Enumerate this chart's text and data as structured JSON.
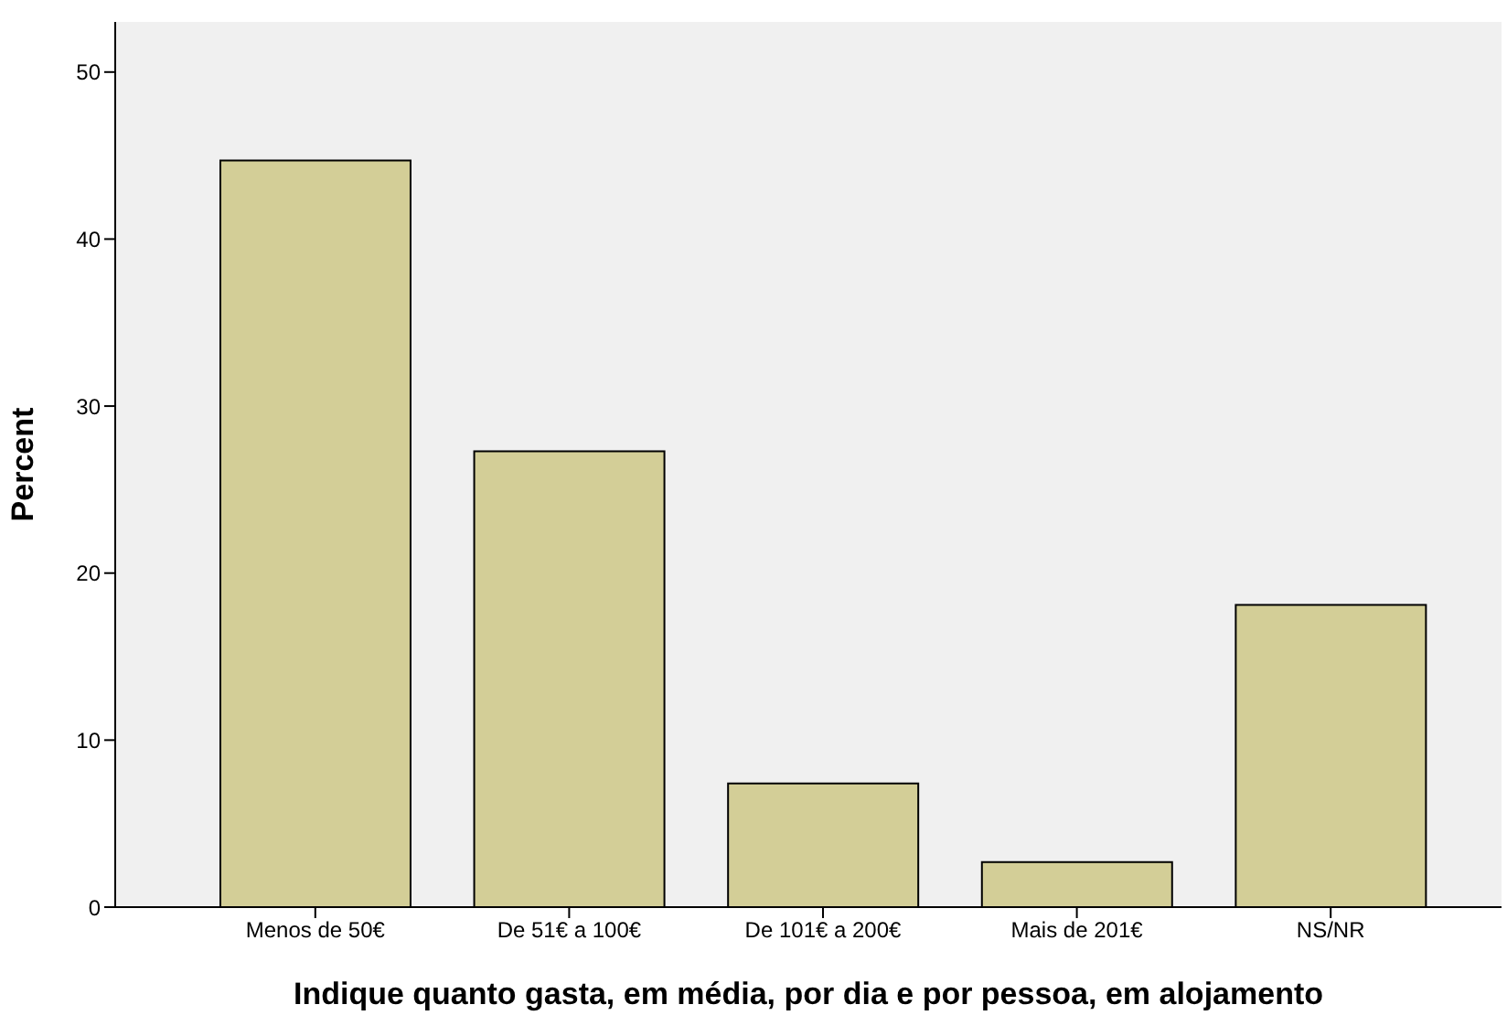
{
  "chart_data": {
    "type": "bar",
    "xlabel": "Indique quanto gasta, em média, por dia e por pessoa, em alojamento",
    "ylabel": "Percent",
    "categories": [
      "Menos de 50€",
      "De 51€ a 100€",
      "De 101€ a 200€",
      "Mais de 201€",
      "NS/NR"
    ],
    "values": [
      44.7,
      27.3,
      7.4,
      2.7,
      18.1
    ],
    "color": "#d3ce97",
    "ylim": [
      0,
      53
    ],
    "yticks": [
      0,
      10,
      20,
      30,
      40,
      50
    ],
    "grid": false
  }
}
